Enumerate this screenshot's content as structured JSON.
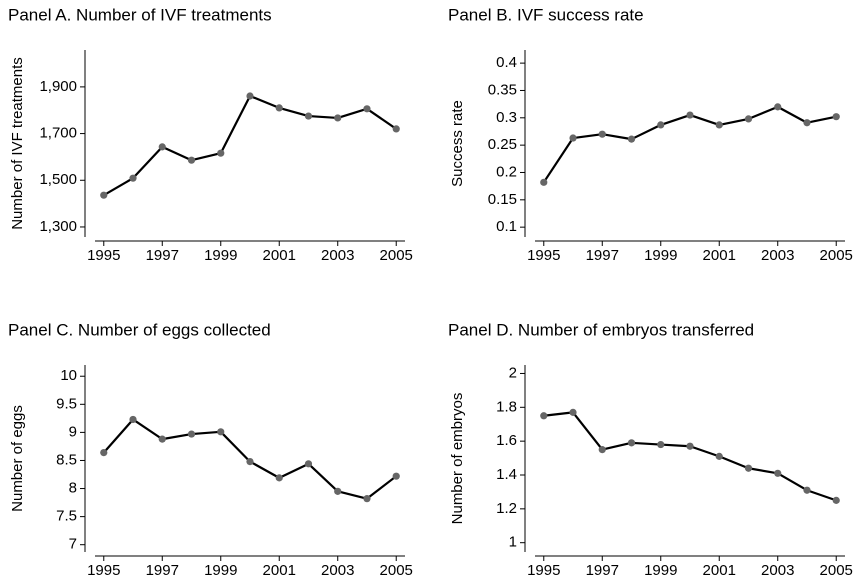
{
  "chart_data": [
    {
      "type": "line",
      "title": "Panel A. Number of IVF treatments",
      "ylabel": "Number of IVF treatments",
      "x": [
        1995,
        1996,
        1997,
        1998,
        1999,
        2000,
        2001,
        2002,
        2003,
        2004,
        2005
      ],
      "values": [
        1436,
        1509,
        1643,
        1586,
        1616,
        1861,
        1810,
        1775,
        1767,
        1806,
        1720
      ],
      "color": "#000000",
      "marker_color": "#666666",
      "xlim": [
        1994.7,
        2005.3
      ],
      "xticks": [
        1995,
        1997,
        1999,
        2001,
        2003,
        2005
      ],
      "ylim": [
        1257,
        2058
      ],
      "yticks": [
        {
          "value": 1300,
          "label": "1,300"
        },
        {
          "value": 1500,
          "label": "1,500"
        },
        {
          "value": 1700,
          "label": "1,700"
        },
        {
          "value": 1900,
          "label": "1,900"
        }
      ]
    },
    {
      "type": "line",
      "title": "Panel B. IVF success rate",
      "ylabel": "Success rate",
      "x": [
        1995,
        1996,
        1997,
        1998,
        1999,
        2000,
        2001,
        2002,
        2003,
        2004,
        2005
      ],
      "values": [
        0.182,
        0.263,
        0.27,
        0.261,
        0.287,
        0.305,
        0.287,
        0.298,
        0.32,
        0.291,
        0.302
      ],
      "color": "#000000",
      "marker_color": "#666666",
      "xlim": [
        1994.7,
        2005.3
      ],
      "xticks": [
        1995,
        1997,
        1999,
        2001,
        2003,
        2005
      ],
      "ylim": [
        0.082,
        0.424
      ],
      "yticks": [
        0.1,
        0.15,
        0.2,
        0.25,
        0.3,
        0.35,
        0.4
      ]
    },
    {
      "type": "line",
      "title": "Panel C. Number of eggs collected",
      "ylabel": "Number of eggs",
      "x": [
        1995,
        1996,
        1997,
        1998,
        1999,
        2000,
        2001,
        2002,
        2003,
        2004,
        2005
      ],
      "values": [
        8.64,
        9.23,
        8.88,
        8.97,
        9.01,
        8.48,
        8.19,
        8.44,
        7.95,
        7.82,
        8.22
      ],
      "color": "#000000",
      "marker_color": "#666666",
      "xlim": [
        1994.7,
        2005.3
      ],
      "xticks": [
        1995,
        1997,
        1999,
        2001,
        2003,
        2005
      ],
      "ylim": [
        6.87,
        10.2
      ],
      "yticks": [
        7,
        7.5,
        8,
        8.5,
        9,
        9.5,
        10
      ]
    },
    {
      "type": "line",
      "title": "Panel D. Number of embryos transferred",
      "ylabel": "Number of embryos",
      "x": [
        1995,
        1996,
        1997,
        1998,
        1999,
        2000,
        2001,
        2002,
        2003,
        2004,
        2005
      ],
      "values": [
        1.75,
        1.77,
        1.55,
        1.59,
        1.58,
        1.57,
        1.51,
        1.44,
        1.41,
        1.31,
        1.25
      ],
      "color": "#000000",
      "marker_color": "#666666",
      "xlim": [
        1994.7,
        2005.3
      ],
      "xticks": [
        1995,
        1997,
        1999,
        2001,
        2003,
        2005
      ],
      "ylim": [
        0.945,
        2.05
      ],
      "yticks": [
        1,
        1.2,
        1.4,
        1.6,
        1.8,
        2
      ]
    }
  ]
}
